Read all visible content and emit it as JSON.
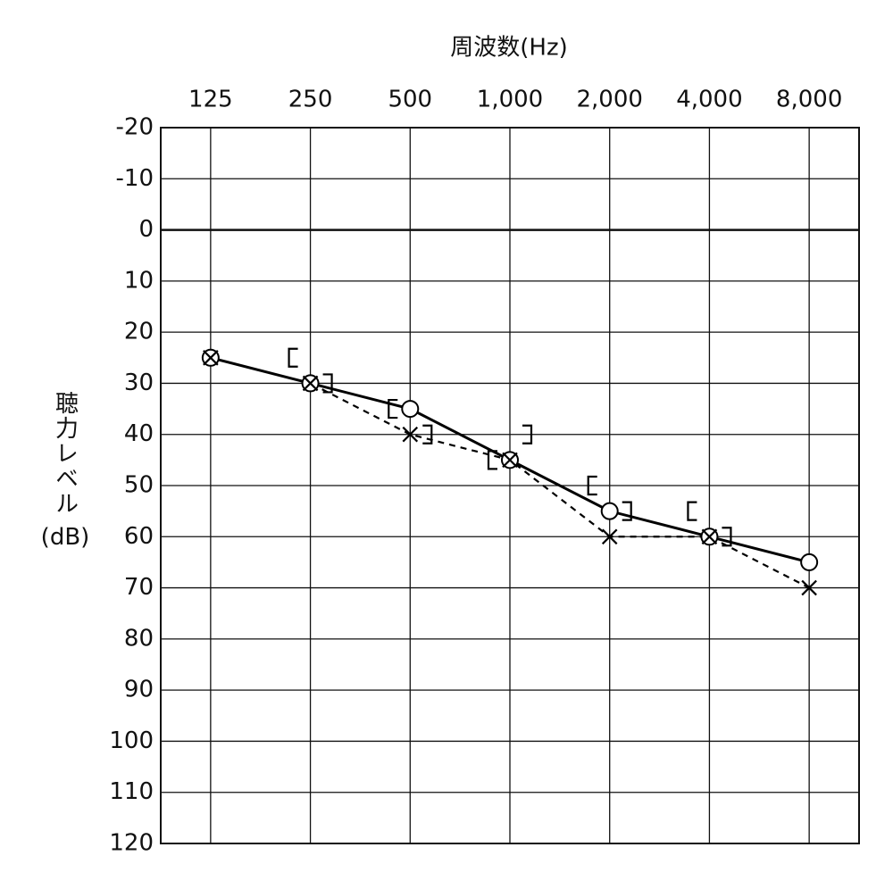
{
  "chart_data": {
    "type": "line",
    "title": "周波数(Hz)",
    "y_label": "聴力レベル",
    "y_unit": "(dB)",
    "categories": [
      "125",
      "250",
      "500",
      "1,000",
      "2,000",
      "4,000",
      "8,000"
    ],
    "ylim": [
      -20,
      120
    ],
    "y_inverted": true,
    "yticks": [
      -20,
      -10,
      0,
      10,
      20,
      30,
      40,
      50,
      60,
      70,
      80,
      90,
      100,
      110,
      120
    ],
    "grid": true,
    "series": [
      {
        "color": "#000000",
        "marker": "circle",
        "line": "solid",
        "values": [
          25,
          30,
          35,
          45,
          55,
          60,
          65
        ]
      },
      {
        "color": "#000000",
        "marker": "cross",
        "line": "dashed",
        "values": [
          25,
          30,
          40,
          45,
          60,
          60,
          70
        ]
      },
      {
        "color": "#000000",
        "marker": "bracket-left",
        "line": "none",
        "values": [
          null,
          25,
          35,
          45,
          50,
          55,
          null
        ]
      },
      {
        "color": "#000000",
        "marker": "bracket-right",
        "line": "none",
        "values": [
          null,
          30,
          40,
          40,
          55,
          60,
          null
        ]
      }
    ]
  }
}
